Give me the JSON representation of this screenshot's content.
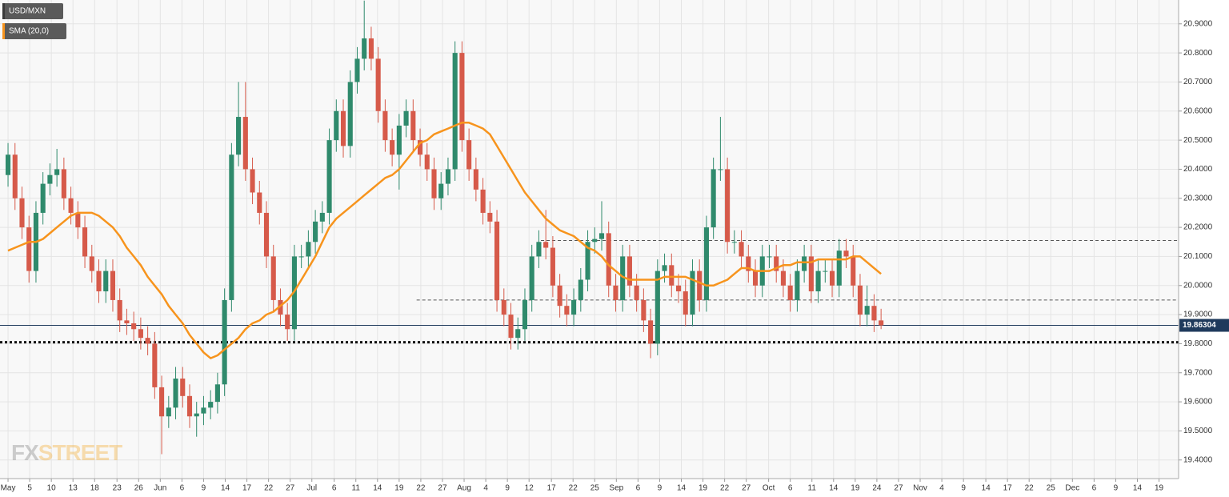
{
  "chart_data": {
    "type": "candlestick",
    "grid": true,
    "xlim": [
      -1.15,
      167.6
    ],
    "ylim": [
      19.336,
      20.982
    ],
    "xticks": [
      {
        "value": 0,
        "label": "May"
      },
      {
        "value": 3.1,
        "label": "5"
      },
      {
        "value": 6.2,
        "label": "10"
      },
      {
        "value": 9.3,
        "label": "13"
      },
      {
        "value": 12.4,
        "label": "18"
      },
      {
        "value": 15.6,
        "label": "23"
      },
      {
        "value": 18.7,
        "label": "26"
      },
      {
        "value": 21.8,
        "label": "Jun"
      },
      {
        "value": 24.9,
        "label": "6"
      },
      {
        "value": 28.0,
        "label": "9"
      },
      {
        "value": 31.1,
        "label": "14"
      },
      {
        "value": 34.2,
        "label": "17"
      },
      {
        "value": 37.3,
        "label": "22"
      },
      {
        "value": 40.4,
        "label": "27"
      },
      {
        "value": 43.5,
        "label": "Jul"
      },
      {
        "value": 46.7,
        "label": "6"
      },
      {
        "value": 49.8,
        "label": "11"
      },
      {
        "value": 52.9,
        "label": "14"
      },
      {
        "value": 56.0,
        "label": "19"
      },
      {
        "value": 59.1,
        "label": "22"
      },
      {
        "value": 62.2,
        "label": "27"
      },
      {
        "value": 65.3,
        "label": "Aug"
      },
      {
        "value": 68.4,
        "label": "4"
      },
      {
        "value": 71.5,
        "label": "9"
      },
      {
        "value": 74.6,
        "label": "12"
      },
      {
        "value": 77.8,
        "label": "17"
      },
      {
        "value": 80.9,
        "label": "22"
      },
      {
        "value": 84.0,
        "label": "25"
      },
      {
        "value": 87.1,
        "label": "Sep"
      },
      {
        "value": 90.2,
        "label": "6"
      },
      {
        "value": 93.3,
        "label": "9"
      },
      {
        "value": 96.4,
        "label": "14"
      },
      {
        "value": 99.5,
        "label": "19"
      },
      {
        "value": 102.6,
        "label": "22"
      },
      {
        "value": 105.7,
        "label": "27"
      },
      {
        "value": 108.9,
        "label": "Oct"
      },
      {
        "value": 112.0,
        "label": "6"
      },
      {
        "value": 115.1,
        "label": "11"
      },
      {
        "value": 118.2,
        "label": "14"
      },
      {
        "value": 121.3,
        "label": "19"
      },
      {
        "value": 124.4,
        "label": "24"
      },
      {
        "value": 127.5,
        "label": "27"
      },
      {
        "value": 130.6,
        "label": "Nov"
      },
      {
        "value": 133.7,
        "label": "4"
      },
      {
        "value": 136.8,
        "label": "9"
      },
      {
        "value": 140.0,
        "label": "14"
      },
      {
        "value": 143.1,
        "label": "17"
      },
      {
        "value": 146.2,
        "label": "22"
      },
      {
        "value": 149.3,
        "label": "25"
      },
      {
        "value": 152.4,
        "label": "Dec"
      },
      {
        "value": 155.5,
        "label": "6"
      },
      {
        "value": 158.6,
        "label": "9"
      },
      {
        "value": 161.7,
        "label": "14"
      },
      {
        "value": 164.8,
        "label": "19"
      }
    ],
    "yticks": [
      {
        "value": 19.4,
        "label": "19.4000"
      },
      {
        "value": 19.5,
        "label": "19.5000"
      },
      {
        "value": 19.6,
        "label": "19.6000"
      },
      {
        "value": 19.7,
        "label": "19.7000"
      },
      {
        "value": 19.8,
        "label": "19.8000"
      },
      {
        "value": 19.9,
        "label": "19.9000"
      },
      {
        "value": 20.0,
        "label": "20.0000"
      },
      {
        "value": 20.1,
        "label": "20.1000"
      },
      {
        "value": 20.2,
        "label": "20.2000"
      },
      {
        "value": 20.3,
        "label": "20.3000"
      },
      {
        "value": 20.4,
        "label": "20.4000"
      },
      {
        "value": 20.5,
        "label": "20.5000"
      },
      {
        "value": 20.6,
        "label": "20.6000"
      },
      {
        "value": 20.7,
        "label": "20.7000"
      },
      {
        "value": 20.8,
        "label": "20.8000"
      },
      {
        "value": 20.9,
        "label": "20.9000"
      }
    ],
    "series": [
      {
        "name": "USD/MXN",
        "type": "candlestick",
        "up_color": "#2f8a6c",
        "down_color": "#d65a4a",
        "open": [
          20.38,
          20.45,
          20.3,
          20.2,
          20.05,
          20.25,
          20.35,
          20.38,
          20.4,
          20.3,
          20.25,
          20.2,
          20.1,
          20.05,
          19.98,
          20.05,
          19.95,
          19.88,
          19.87,
          19.85,
          19.82,
          19.8,
          19.65,
          19.55,
          19.58,
          19.68,
          19.62,
          19.55,
          19.56,
          19.58,
          19.6,
          19.66,
          19.95,
          20.45,
          20.58,
          20.4,
          20.32,
          20.25,
          20.1,
          19.95,
          19.9,
          19.85,
          20.1,
          20.1,
          20.15,
          20.22,
          20.25,
          20.5,
          20.6,
          20.48,
          20.7,
          20.78,
          20.85,
          20.78,
          20.6,
          20.5,
          20.45,
          20.55,
          20.6,
          20.5,
          20.45,
          20.4,
          20.3,
          20.35,
          20.4,
          20.8,
          20.5,
          20.4,
          20.33,
          20.25,
          20.22,
          19.95,
          19.9,
          19.82,
          19.85,
          19.95,
          20.1,
          20.15,
          20.13,
          20.0,
          19.93,
          19.9,
          19.95,
          20.02,
          20.15,
          20.16,
          20.18,
          20.0,
          19.95,
          20.1,
          20.0,
          19.95,
          19.88,
          19.8,
          20.05,
          20.07,
          20.0,
          19.98,
          19.9,
          20.05,
          19.95,
          20.2,
          20.4,
          20.4,
          20.15,
          20.15,
          20.1,
          20.05,
          20.0,
          20.1,
          20.1,
          20.05,
          20.0,
          19.95,
          20.05,
          20.1,
          19.98,
          20.05,
          20.05,
          20.0,
          20.12,
          20.1,
          20.0,
          19.9,
          19.93,
          19.88
        ],
        "high": [
          20.49,
          20.49,
          20.34,
          20.24,
          20.29,
          20.39,
          20.42,
          20.47,
          20.44,
          20.34,
          20.29,
          20.24,
          20.14,
          20.09,
          20.09,
          20.09,
          19.99,
          19.92,
          19.91,
          19.89,
          19.86,
          19.84,
          19.69,
          19.62,
          19.72,
          19.72,
          19.66,
          19.6,
          19.62,
          19.64,
          19.7,
          19.99,
          20.49,
          20.7,
          20.7,
          20.44,
          20.36,
          20.29,
          20.14,
          19.99,
          19.94,
          20.14,
          20.14,
          20.19,
          20.26,
          20.29,
          20.54,
          20.64,
          20.64,
          20.74,
          20.82,
          20.98,
          20.89,
          20.82,
          20.64,
          20.54,
          20.59,
          20.64,
          20.64,
          20.54,
          20.49,
          20.44,
          20.39,
          20.44,
          20.84,
          20.84,
          20.54,
          20.44,
          20.37,
          20.29,
          20.26,
          19.99,
          19.94,
          19.89,
          19.99,
          20.14,
          20.19,
          20.26,
          20.17,
          20.04,
          19.97,
          19.99,
          20.06,
          20.19,
          20.2,
          20.29,
          20.22,
          20.04,
          20.14,
          20.14,
          20.04,
          19.99,
          19.92,
          20.09,
          20.11,
          20.11,
          20.04,
          20.02,
          20.09,
          20.09,
          20.24,
          20.44,
          20.58,
          20.44,
          20.19,
          20.19,
          20.14,
          20.09,
          20.14,
          20.14,
          20.14,
          20.09,
          20.04,
          20.09,
          20.14,
          20.14,
          20.09,
          20.09,
          20.09,
          20.16,
          20.16,
          20.14,
          20.04,
          20.0,
          19.97,
          19.92
        ],
        "low": [
          20.34,
          20.26,
          20.16,
          20.01,
          20.01,
          20.21,
          20.31,
          20.34,
          20.26,
          20.21,
          20.16,
          20.06,
          20.01,
          19.94,
          19.94,
          19.91,
          19.84,
          19.83,
          19.81,
          19.78,
          19.76,
          19.61,
          19.42,
          19.51,
          19.54,
          19.58,
          19.51,
          19.48,
          19.52,
          19.54,
          19.56,
          19.62,
          19.91,
          20.41,
          20.36,
          20.28,
          20.21,
          20.06,
          19.91,
          19.86,
          19.81,
          19.81,
          20.06,
          20.06,
          20.11,
          20.18,
          20.21,
          20.46,
          20.44,
          20.44,
          20.66,
          20.74,
          20.74,
          20.56,
          20.46,
          20.41,
          20.33,
          20.51,
          20.46,
          20.41,
          20.36,
          20.26,
          20.26,
          20.31,
          20.36,
          20.46,
          20.36,
          20.29,
          20.21,
          20.18,
          19.91,
          19.86,
          19.78,
          19.78,
          19.81,
          19.91,
          20.06,
          20.09,
          19.96,
          19.89,
          19.86,
          19.86,
          19.91,
          19.98,
          20.11,
          20.12,
          19.96,
          19.91,
          19.91,
          19.96,
          19.91,
          19.84,
          19.75,
          19.76,
          20.01,
          19.96,
          19.94,
          19.86,
          19.86,
          19.91,
          19.91,
          20.16,
          20.36,
          20.11,
          20.11,
          20.06,
          20.01,
          19.96,
          19.96,
          20.06,
          20.01,
          19.96,
          19.91,
          19.91,
          20.01,
          19.94,
          19.94,
          20.01,
          19.96,
          19.96,
          20.06,
          19.96,
          19.86,
          19.86,
          19.84,
          19.85
        ],
        "close": [
          20.45,
          20.3,
          20.2,
          20.05,
          20.25,
          20.35,
          20.38,
          20.4,
          20.3,
          20.25,
          20.2,
          20.1,
          20.05,
          19.98,
          20.05,
          19.95,
          19.88,
          19.87,
          19.85,
          19.82,
          19.8,
          19.65,
          19.55,
          19.58,
          19.68,
          19.62,
          19.55,
          19.56,
          19.58,
          19.6,
          19.66,
          19.95,
          20.45,
          20.58,
          20.4,
          20.32,
          20.25,
          20.1,
          19.95,
          19.9,
          19.85,
          20.1,
          20.1,
          20.15,
          20.22,
          20.25,
          20.5,
          20.6,
          20.48,
          20.7,
          20.78,
          20.85,
          20.78,
          20.6,
          20.5,
          20.45,
          20.55,
          20.6,
          20.5,
          20.45,
          20.4,
          20.3,
          20.35,
          20.4,
          20.8,
          20.5,
          20.4,
          20.33,
          20.25,
          20.22,
          19.95,
          19.9,
          19.82,
          19.85,
          19.95,
          20.1,
          20.15,
          20.13,
          20.0,
          19.93,
          19.9,
          19.95,
          20.02,
          20.15,
          20.16,
          20.18,
          20.0,
          19.95,
          20.1,
          20.0,
          19.95,
          19.88,
          19.8,
          20.05,
          20.07,
          20.0,
          19.98,
          19.9,
          20.05,
          19.95,
          20.2,
          20.4,
          20.4,
          20.15,
          20.15,
          20.1,
          20.05,
          20.0,
          20.1,
          20.1,
          20.05,
          20.0,
          19.95,
          20.05,
          20.1,
          19.98,
          20.05,
          20.05,
          20.0,
          20.12,
          20.1,
          20.0,
          19.9,
          19.93,
          19.88,
          19.86304
        ]
      },
      {
        "name": "SMA (20,0)",
        "type": "line",
        "color": "#f7941d",
        "values": [
          20.12,
          20.13,
          20.14,
          20.15,
          20.15,
          20.16,
          20.18,
          20.2,
          20.22,
          20.24,
          20.25,
          20.25,
          20.25,
          20.24,
          20.22,
          20.2,
          20.17,
          20.13,
          20.1,
          20.07,
          20.03,
          20.0,
          19.97,
          19.93,
          19.9,
          19.87,
          19.83,
          19.8,
          19.77,
          19.75,
          19.76,
          19.78,
          19.8,
          19.82,
          19.85,
          19.87,
          19.88,
          19.9,
          19.91,
          19.93,
          19.95,
          19.98,
          20.02,
          20.06,
          20.1,
          20.15,
          20.2,
          20.23,
          20.25,
          20.27,
          20.29,
          20.31,
          20.33,
          20.35,
          20.37,
          20.38,
          20.4,
          20.43,
          20.46,
          20.49,
          20.5,
          20.52,
          20.53,
          20.54,
          20.55,
          20.56,
          20.56,
          20.55,
          20.54,
          20.52,
          20.48,
          20.44,
          20.4,
          20.36,
          20.32,
          20.29,
          20.26,
          20.23,
          20.21,
          20.19,
          20.18,
          20.17,
          20.15,
          20.13,
          20.12,
          20.1,
          20.07,
          20.05,
          20.03,
          20.02,
          20.02,
          20.02,
          20.02,
          20.02,
          20.03,
          20.03,
          20.03,
          20.03,
          20.02,
          20.01,
          20.0,
          20.0,
          20.01,
          20.02,
          20.04,
          20.06,
          20.06,
          20.05,
          20.05,
          20.05,
          20.06,
          20.07,
          20.07,
          20.08,
          20.08,
          20.08,
          20.09,
          20.09,
          20.09,
          20.09,
          20.09,
          20.1,
          20.1,
          20.08,
          20.06,
          20.04
        ]
      }
    ],
    "levels": [
      {
        "value": 20.155,
        "style": "dashed",
        "color": "#555555",
        "from": 76.3
      },
      {
        "value": 19.95,
        "style": "dashed",
        "color": "#555555",
        "from": 58.5
      },
      {
        "value": 19.805,
        "style": "dotted",
        "color": "#111111"
      },
      {
        "value": 19.86304,
        "style": "solid",
        "color": "#1f3a5c"
      }
    ],
    "price_label": {
      "value": 19.86304,
      "color": "#1f3a5c"
    },
    "logo": {
      "left": "FX",
      "right": "STREET"
    }
  }
}
